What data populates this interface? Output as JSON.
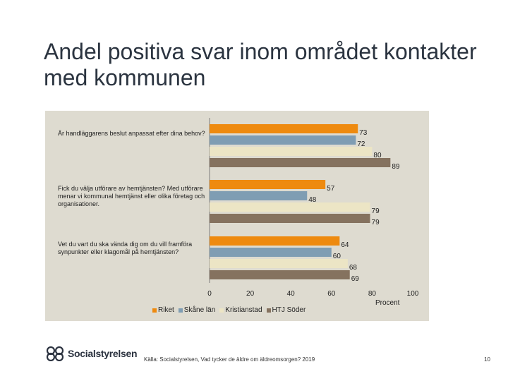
{
  "page": {
    "title": "Andel positiva svar inom området kontakter med kommunen",
    "source": "Källa: Socialstyrelsen, Vad tycker de äldre om äldreomsorgen? 2019",
    "page_number": "10",
    "logo_text": "Socialstyrelsen"
  },
  "chart_data": {
    "type": "bar",
    "orientation": "horizontal",
    "categories": [
      "Är handläggarens beslut anpassat efter dina behov?",
      "Fick du välja utförare av hemtjänsten? Med utförare menar vi kommunal hemtjänst eller olika företag och organisationer.",
      "Vet du vart du ska vända dig om du vill framföra synpunkter eller klagomål på hemtjänsten?"
    ],
    "series": [
      {
        "name": "Riket",
        "values": [
          73,
          57,
          64
        ],
        "color": "#ee8a0f"
      },
      {
        "name": "Skåne län",
        "values": [
          72,
          48,
          60
        ],
        "color": "#7f9db3"
      },
      {
        "name": "Kristianstad",
        "values": [
          80,
          79,
          68
        ],
        "color": "#ece5c5"
      },
      {
        "name": "HTJ Söder",
        "values": [
          89,
          79,
          69
        ],
        "color": "#85725f"
      }
    ],
    "xlim": [
      0,
      100
    ],
    "xticks": [
      0,
      20,
      40,
      60,
      80,
      100
    ],
    "xlabel": "Procent",
    "legend_position": "bottom",
    "grid": false
  }
}
